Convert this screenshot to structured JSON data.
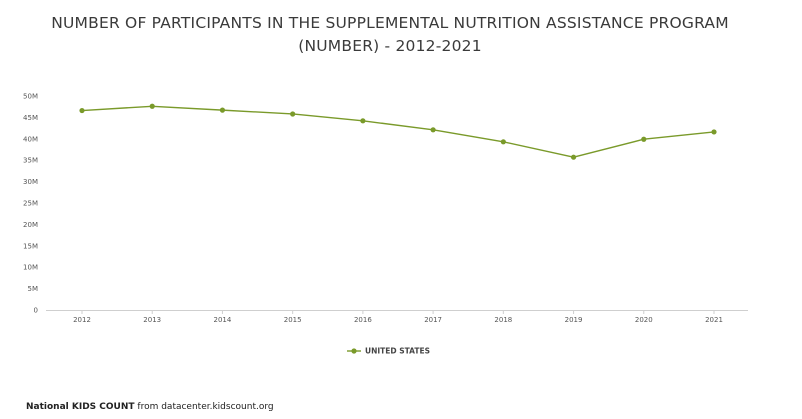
{
  "chart_data": {
    "type": "line",
    "title": "NUMBER OF PARTICIPANTS IN THE SUPPLEMENTAL NUTRITION ASSISTANCE PROGRAM (NUMBER) - 2012-2021",
    "xlabel": "",
    "ylabel": "",
    "x": [
      "2012",
      "2013",
      "2014",
      "2015",
      "2016",
      "2017",
      "2018",
      "2019",
      "2020",
      "2021"
    ],
    "series": [
      {
        "name": "UNITED STATES",
        "color": "#7a9a2a",
        "values": [
          46.6,
          47.6,
          46.7,
          45.8,
          44.2,
          42.1,
          39.3,
          35.7,
          39.9,
          41.6
        ]
      }
    ],
    "value_unit": "M",
    "ylim": [
      0,
      50
    ],
    "yticks": [
      0,
      5,
      10,
      15,
      20,
      25,
      30,
      35,
      40,
      45,
      50
    ],
    "ytick_labels": [
      "0",
      "5M",
      "10M",
      "15M",
      "20M",
      "25M",
      "30M",
      "35M",
      "40M",
      "45M",
      "50M"
    ],
    "grid": false,
    "legend": "bottom-center"
  },
  "footer": {
    "brand": "National KIDS COUNT",
    "source": "from datacenter.kidscount.org"
  }
}
